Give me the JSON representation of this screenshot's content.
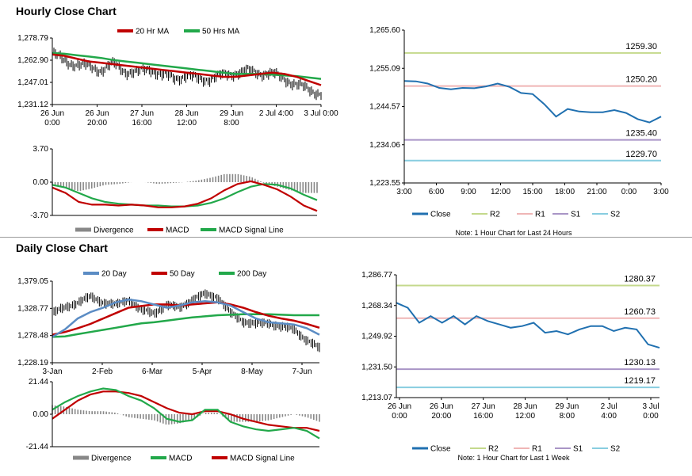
{
  "sections": {
    "hourly": "Hourly Close Chart",
    "daily": "Daily Close Chart"
  },
  "colors": {
    "ma_short": "#c00000",
    "ma_long": "#22a84a",
    "ma_20d": "#5b8cc4",
    "close": "#2070b0",
    "r2": "#c4d98c",
    "r1": "#efb5b5",
    "s1": "#a995c6",
    "s2": "#88cde0",
    "divergence": "#888888",
    "price_bars": "#000000"
  },
  "chart_data": [
    {
      "id": "hourly_price",
      "type": "line",
      "title": "Hourly Close Chart",
      "series_names": [
        "20 Hr MA",
        "50 Hrs MA"
      ],
      "yticks": [
        "1,278.79",
        "1,262.90",
        "1,247.01",
        "1,231.12"
      ],
      "ylim": [
        1231.12,
        1278.79
      ],
      "xticks": [
        "26 Jun\n0:00",
        "26 Jun\n20:00",
        "27 Jun\n16:00",
        "28 Jun\n12:00",
        "29 Jun\n8:00",
        "2 Jul 4:00",
        "3 Jul 0:00"
      ],
      "ma20": [
        1267,
        1266,
        1264,
        1262,
        1261,
        1260,
        1259,
        1258,
        1257,
        1256,
        1255,
        1254,
        1253,
        1252,
        1251,
        1251,
        1252,
        1253,
        1254,
        1253,
        1251,
        1248,
        1245
      ],
      "ma50": [
        1268,
        1267.5,
        1266.5,
        1265.5,
        1264.5,
        1263,
        1262,
        1261,
        1260,
        1259,
        1258,
        1257,
        1256,
        1255,
        1254,
        1253,
        1253,
        1253,
        1252.5,
        1252,
        1251.5,
        1250.5,
        1249.5
      ],
      "price_sample": [
        1268,
        1262,
        1260,
        1258,
        1256,
        1260,
        1255,
        1254,
        1257,
        1252,
        1250,
        1252,
        1249,
        1250,
        1252,
        1254,
        1255,
        1254,
        1253,
        1250,
        1245,
        1242,
        1239
      ]
    },
    {
      "id": "hourly_macd",
      "type": "line",
      "yticks": [
        "3.70",
        "0.00",
        "-3.70"
      ],
      "ylim": [
        -3.7,
        3.7
      ],
      "series_names": [
        "Divergence",
        "MACD",
        "MACD Signal Line"
      ],
      "macd": [
        -0.6,
        -1.2,
        -2.2,
        -2.5,
        -2.5,
        -2.6,
        -2.5,
        -2.6,
        -2.8,
        -2.8,
        -2.7,
        -2.4,
        -1.8,
        -0.9,
        -0.2,
        0.1,
        -0.3,
        -0.8,
        -1.6,
        -2.6,
        -3.2
      ],
      "signal": [
        -0.3,
        -0.6,
        -1.2,
        -1.8,
        -2.2,
        -2.4,
        -2.5,
        -2.6,
        -2.6,
        -2.7,
        -2.7,
        -2.6,
        -2.3,
        -1.8,
        -1.1,
        -0.5,
        -0.2,
        -0.3,
        -0.7,
        -1.4,
        -2.0
      ],
      "divergence": [
        -0.3,
        -0.6,
        -1.0,
        -0.7,
        -0.3,
        -0.2,
        0,
        0,
        -0.2,
        -0.1,
        0,
        0.2,
        0.5,
        0.9,
        0.9,
        0.6,
        -0.1,
        -0.5,
        -0.9,
        -1.2,
        -1.2
      ]
    },
    {
      "id": "hourly_close",
      "type": "line",
      "yticks": [
        "1,265.60",
        "1,255.09",
        "1,244.57",
        "1,234.06",
        "1,223.55"
      ],
      "ylim": [
        1223.55,
        1265.6
      ],
      "xticks": [
        "3:00",
        "6:00",
        "9:00",
        "12:00",
        "15:00",
        "18:00",
        "21:00",
        "0:00",
        "3:00"
      ],
      "close": [
        1251.6,
        1251.5,
        1250.9,
        1249.7,
        1249.3,
        1249.7,
        1249.6,
        1250.1,
        1250.9,
        1250.0,
        1248.3,
        1248.0,
        1245.2,
        1241.8,
        1243.9,
        1243.2,
        1243.0,
        1243.0,
        1243.6,
        1242.8,
        1241.1,
        1240.2,
        1241.8
      ],
      "levels": [
        {
          "key": "R2",
          "value": 1259.3,
          "label": "1259.30",
          "color": "#c4d98c"
        },
        {
          "key": "R1",
          "value": 1250.2,
          "label": "1250.20",
          "color": "#efb5b5"
        },
        {
          "key": "S1",
          "value": 1235.4,
          "label": "1235.40",
          "color": "#a995c6"
        },
        {
          "key": "S2",
          "value": 1229.7,
          "label": "1229.70",
          "color": "#88cde0"
        }
      ],
      "legend": [
        "Close",
        "R2",
        "R1",
        "S1",
        "S2"
      ],
      "note": "Note: 1 Hour Chart for Last 24 Hours"
    },
    {
      "id": "daily_price",
      "type": "line",
      "series_names": [
        "20 Day",
        "50 Day",
        "200 Day"
      ],
      "yticks": [
        "1,379.05",
        "1,328.77",
        "1,278.48",
        "1,228.19"
      ],
      "ylim": [
        1228.19,
        1379.05
      ],
      "xticks": [
        "3-Jan",
        "2-Feb",
        "6-Mar",
        "5-Apr",
        "8-May",
        "7-Jun"
      ],
      "d20": [
        1276,
        1290,
        1310,
        1322,
        1330,
        1340,
        1345,
        1342,
        1336,
        1330,
        1334,
        1340,
        1342,
        1340,
        1334,
        1322,
        1310,
        1303,
        1301,
        1299,
        1292,
        1280
      ],
      "d50": [
        1280,
        1285,
        1292,
        1300,
        1310,
        1320,
        1330,
        1333,
        1336,
        1336,
        1334,
        1336,
        1338,
        1340,
        1336,
        1330,
        1322,
        1315,
        1310,
        1306,
        1300,
        1293
      ],
      "d200": [
        1276,
        1277,
        1281,
        1285,
        1289,
        1293,
        1297,
        1301,
        1303,
        1306,
        1309,
        1312,
        1314,
        1316,
        1317,
        1318,
        1318,
        1318,
        1317,
        1316,
        1316,
        1316
      ],
      "price_sample": [
        1320,
        1330,
        1340,
        1350,
        1340,
        1335,
        1345,
        1325,
        1320,
        1335,
        1330,
        1345,
        1355,
        1350,
        1320,
        1305,
        1300,
        1302,
        1295,
        1290,
        1270,
        1255
      ]
    },
    {
      "id": "daily_macd",
      "type": "line",
      "yticks": [
        "21.44",
        "0.00",
        "-21.44"
      ],
      "ylim": [
        -21.44,
        21.44
      ],
      "series_names": [
        "Divergence",
        "MACD",
        "MACD Signal Line"
      ],
      "macd": [
        3,
        8,
        12,
        15,
        17,
        16,
        12,
        9,
        4,
        -3,
        -5,
        -4,
        3,
        3,
        -5,
        -8,
        -10,
        -11,
        -10,
        -9,
        -11,
        -16
      ],
      "signal": [
        -3,
        3,
        9,
        13,
        15,
        15,
        14,
        12,
        8,
        4,
        1,
        0,
        2,
        2,
        0,
        -3,
        -5,
        -7,
        -8,
        -9,
        -9,
        -11
      ],
      "divergence": [
        6,
        5,
        3,
        2,
        2,
        1,
        -2,
        -3,
        -4,
        -7,
        -6,
        -4,
        1,
        1,
        -5,
        -5,
        -5,
        -4,
        -2,
        0,
        -2,
        -5
      ]
    },
    {
      "id": "weekly_close",
      "type": "line",
      "yticks": [
        "1,286.77",
        "1,268.34",
        "1,249.92",
        "1,231.50",
        "1,213.07"
      ],
      "ylim": [
        1213.07,
        1286.77
      ],
      "xticks": [
        "26 Jun\n0:00",
        "26 Jun\n20:00",
        "27 Jun\n16:00",
        "28 Jun\n12:00",
        "29 Jun\n8:00",
        "2 Jul\n4:00",
        "3 Jul\n0:00"
      ],
      "close": [
        1270,
        1267,
        1258,
        1262,
        1258,
        1262,
        1257,
        1262,
        1259,
        1257,
        1255,
        1256,
        1258,
        1252,
        1253,
        1251,
        1254,
        1256,
        1256,
        1253,
        1255,
        1254,
        1245,
        1243
      ],
      "levels": [
        {
          "key": "R2",
          "value": 1280.37,
          "label": "1280.37",
          "color": "#c4d98c"
        },
        {
          "key": "R1",
          "value": 1260.73,
          "label": "1260.73",
          "color": "#efb5b5"
        },
        {
          "key": "S1",
          "value": 1230.13,
          "label": "1230.13",
          "color": "#a995c6"
        },
        {
          "key": "S2",
          "value": 1219.17,
          "label": "1219.17",
          "color": "#88cde0"
        }
      ],
      "legend": [
        "Close",
        "R2",
        "R1",
        "S1",
        "S2"
      ],
      "note": "Note: 1 Hour Chart for Last 1 Week"
    }
  ]
}
